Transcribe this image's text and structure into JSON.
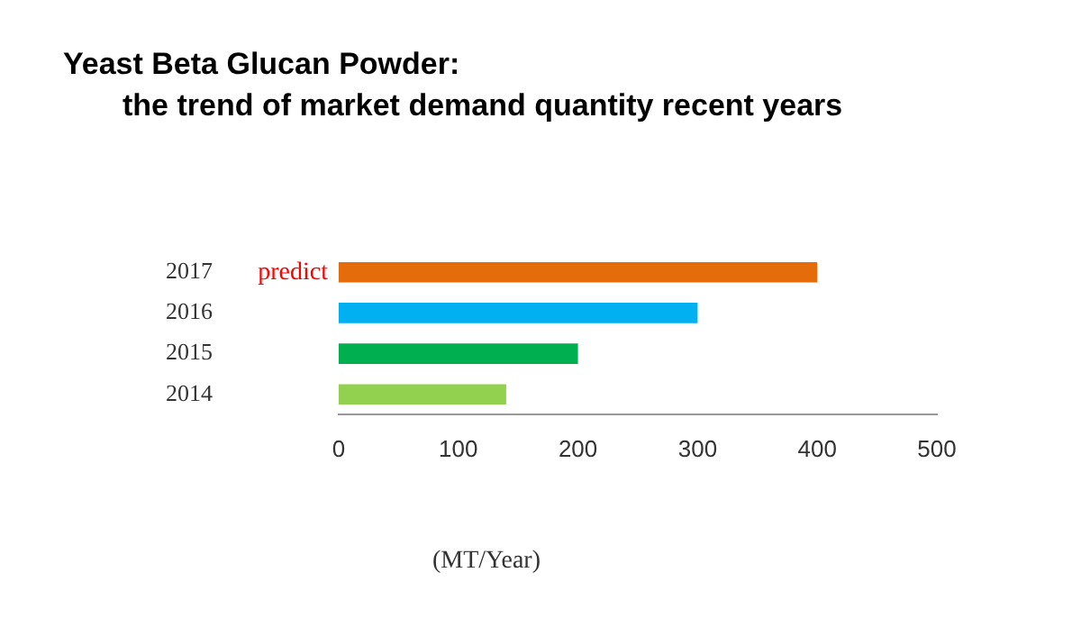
{
  "chart_data": {
    "type": "bar",
    "orientation": "horizontal",
    "title": "Yeast Beta Glucan Powder:\nthe trend of market demand quantity recent years",
    "categories": [
      "2017",
      "2016",
      "2015",
      "2014"
    ],
    "values": [
      400,
      300,
      200,
      140
    ],
    "colors": [
      "#e46c0a",
      "#00b0f0",
      "#00b050",
      "#92d050"
    ],
    "xlim": [
      0,
      500
    ],
    "xticks": [
      0,
      100,
      200,
      300,
      400,
      500
    ],
    "grid": false,
    "legend": false,
    "xlabel": "(MT/Year)",
    "annotations": [
      {
        "text": "predict",
        "x": 0,
        "y": "2017"
      }
    ]
  }
}
